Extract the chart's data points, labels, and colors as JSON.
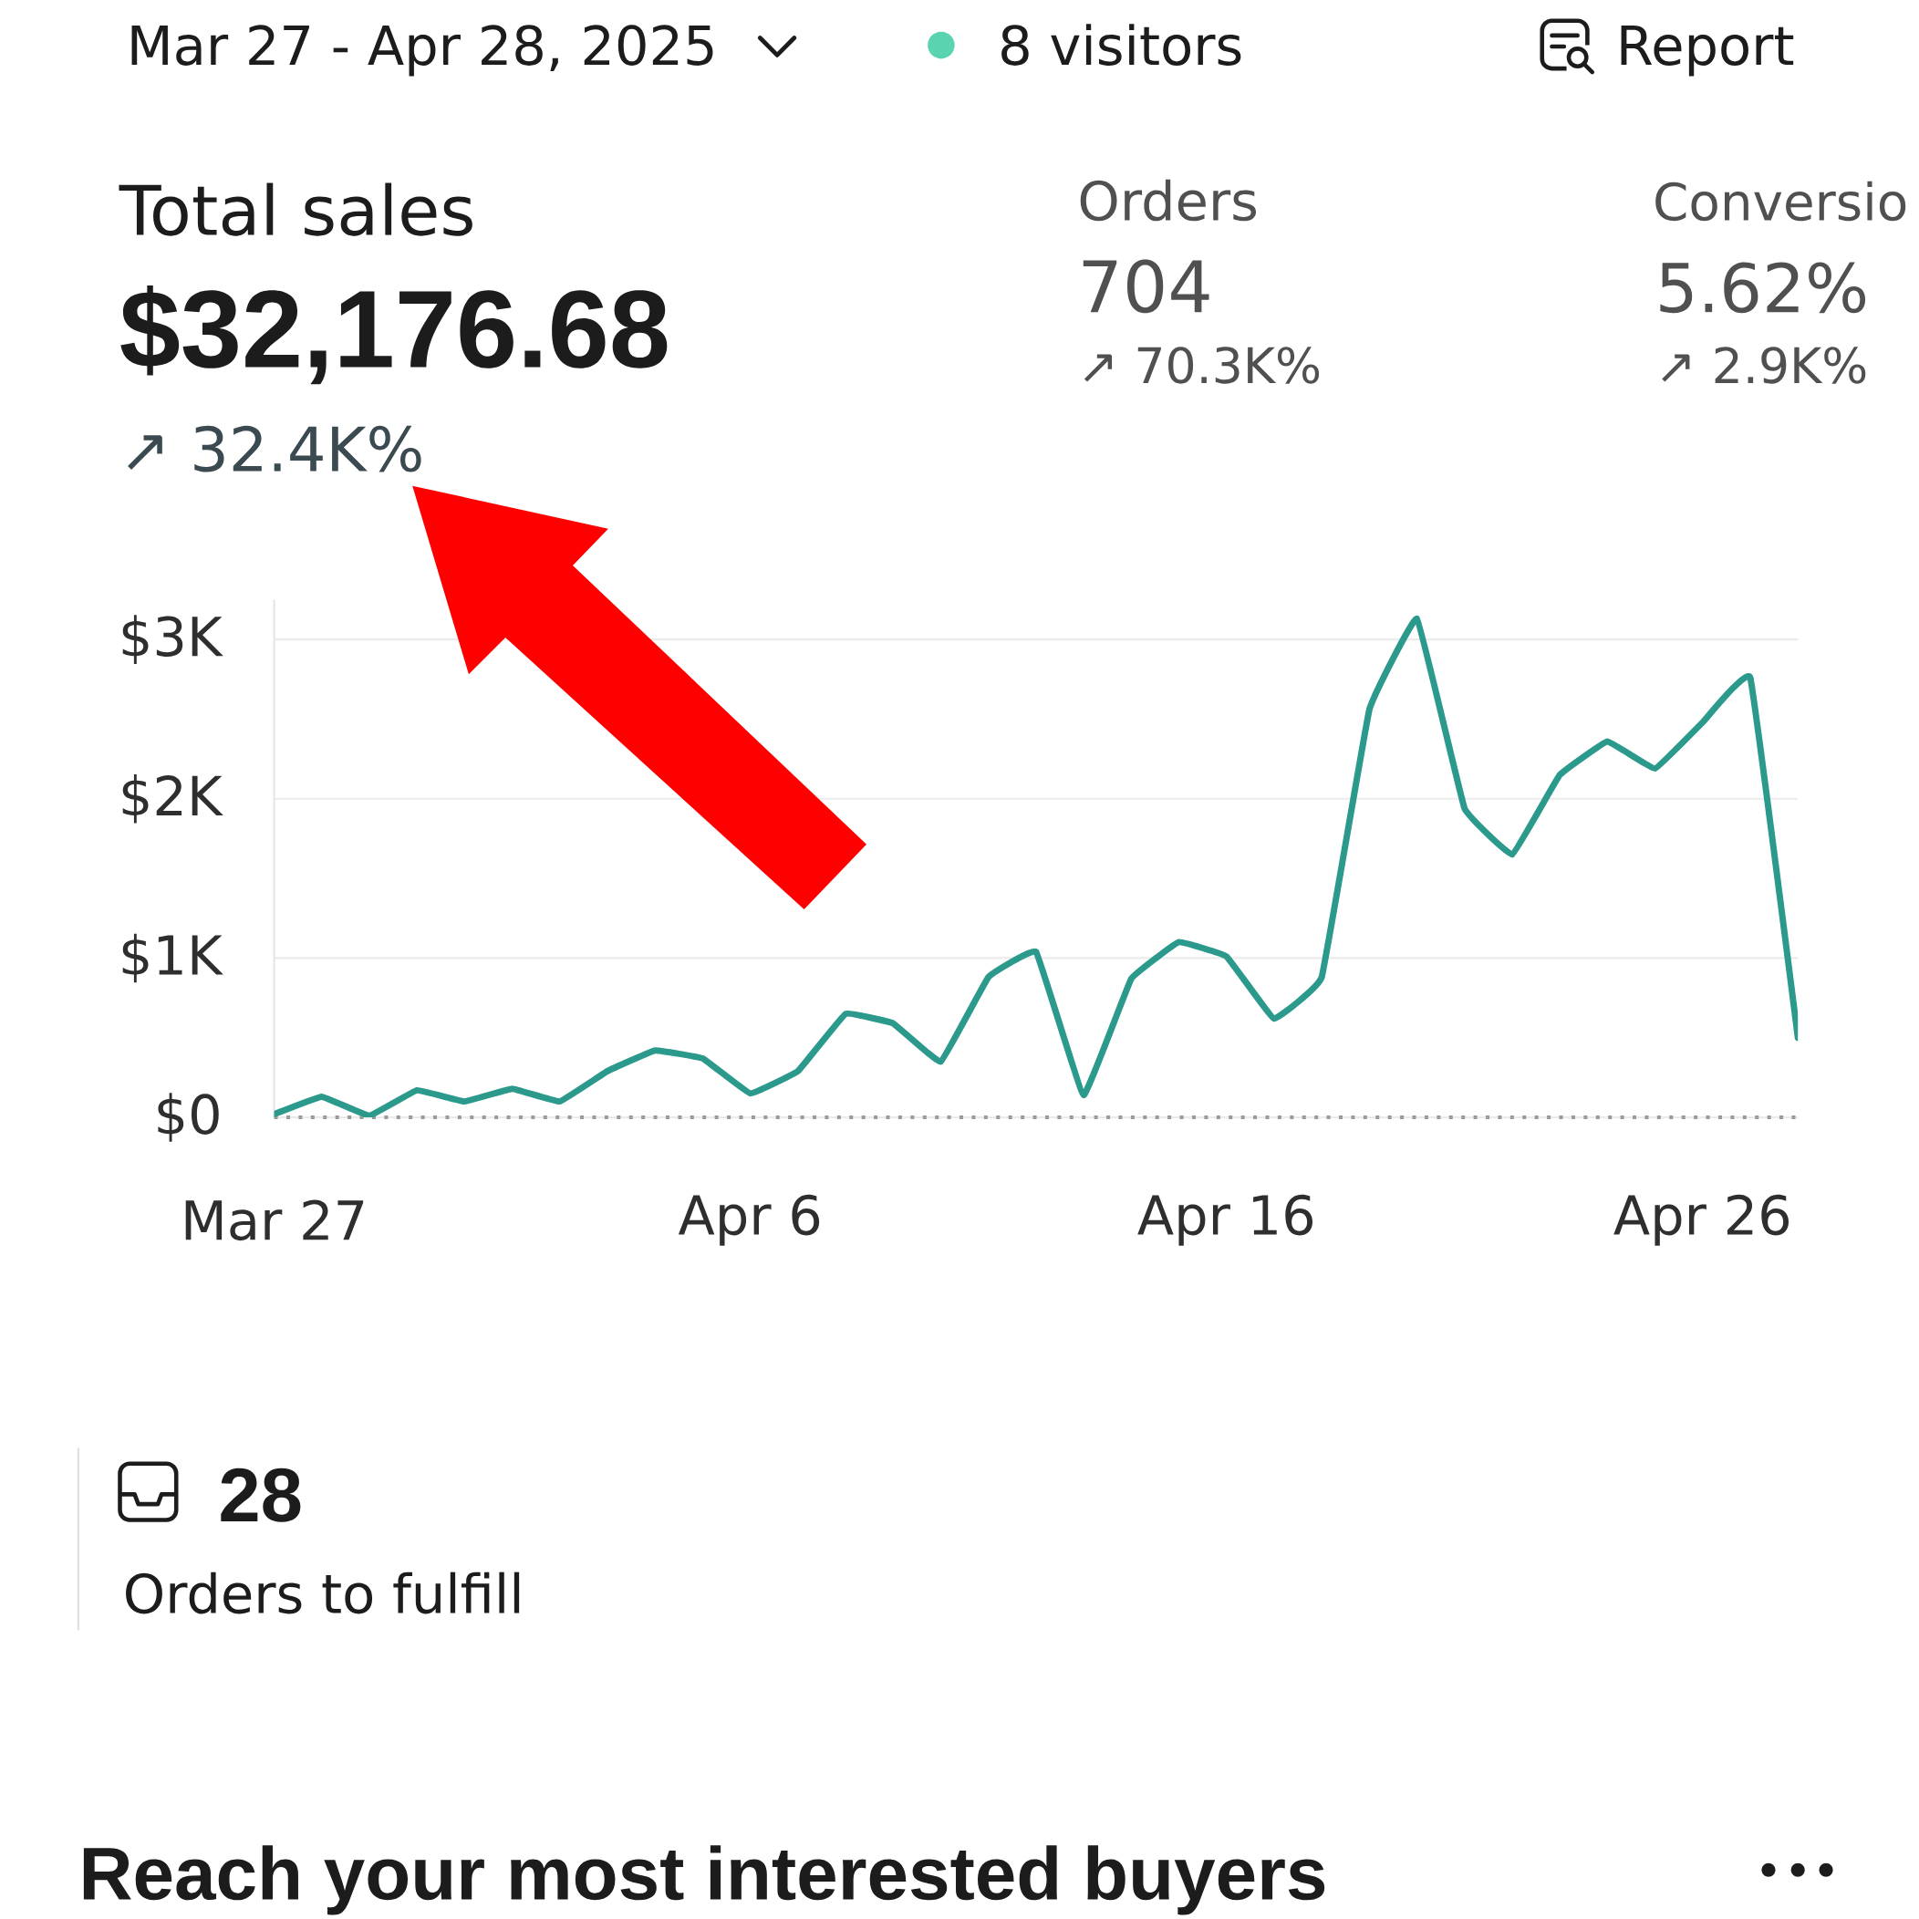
{
  "chart_data": {
    "type": "line",
    "title": "Total sales",
    "subtitle": "$32,176.68",
    "annotations": [
      "Mar 27 - Apr 28, 2025",
      "8 visitors",
      "Report",
      "↗ 32.4K%",
      "Orders",
      "704",
      "↗ 70.3K%",
      "Conversio",
      "5.62%",
      "↗ 2.9K%",
      "28",
      "Orders to fulfill",
      "Reach your most interested buyers"
    ],
    "x": [
      "2025-03-27",
      "2025-03-28",
      "2025-03-29",
      "2025-03-30",
      "2025-03-31",
      "2025-04-01",
      "2025-04-02",
      "2025-04-03",
      "2025-04-04",
      "2025-04-05",
      "2025-04-06",
      "2025-04-07",
      "2025-04-08",
      "2025-04-09",
      "2025-04-10",
      "2025-04-11",
      "2025-04-12",
      "2025-04-13",
      "2025-04-14",
      "2025-04-15",
      "2025-04-16",
      "2025-04-17",
      "2025-04-18",
      "2025-04-19",
      "2025-04-20",
      "2025-04-21",
      "2025-04-22",
      "2025-04-23",
      "2025-04-24",
      "2025-04-25",
      "2025-04-26",
      "2025-04-27",
      "2025-04-28"
    ],
    "values": [
      20,
      130,
      10,
      170,
      100,
      180,
      100,
      290,
      420,
      370,
      150,
      290,
      650,
      590,
      350,
      880,
      1040,
      140,
      870,
      1100,
      1010,
      620,
      880,
      2560,
      3130,
      1940,
      1650,
      2150,
      2360,
      2190,
      2480,
      2760,
      500
    ],
    "color": "#2b9a8c",
    "xlim": [
      "2025-03-27",
      "2025-04-28"
    ],
    "xticks": [
      {
        "value": "2025-03-27",
        "label": "Mar 27"
      },
      {
        "value": "2025-04-06",
        "label": "Apr 6"
      },
      {
        "value": "2025-04-16",
        "label": "Apr 16"
      },
      {
        "value": "2025-04-26",
        "label": "Apr 26"
      }
    ],
    "ylim": [
      0,
      3250
    ],
    "yticks": [
      {
        "value": 0,
        "label": "$0"
      },
      {
        "value": 1000,
        "label": "$1K"
      },
      {
        "value": 2000,
        "label": "$2K"
      },
      {
        "value": 3000,
        "label": "$3K"
      }
    ],
    "grid": "y"
  }
}
